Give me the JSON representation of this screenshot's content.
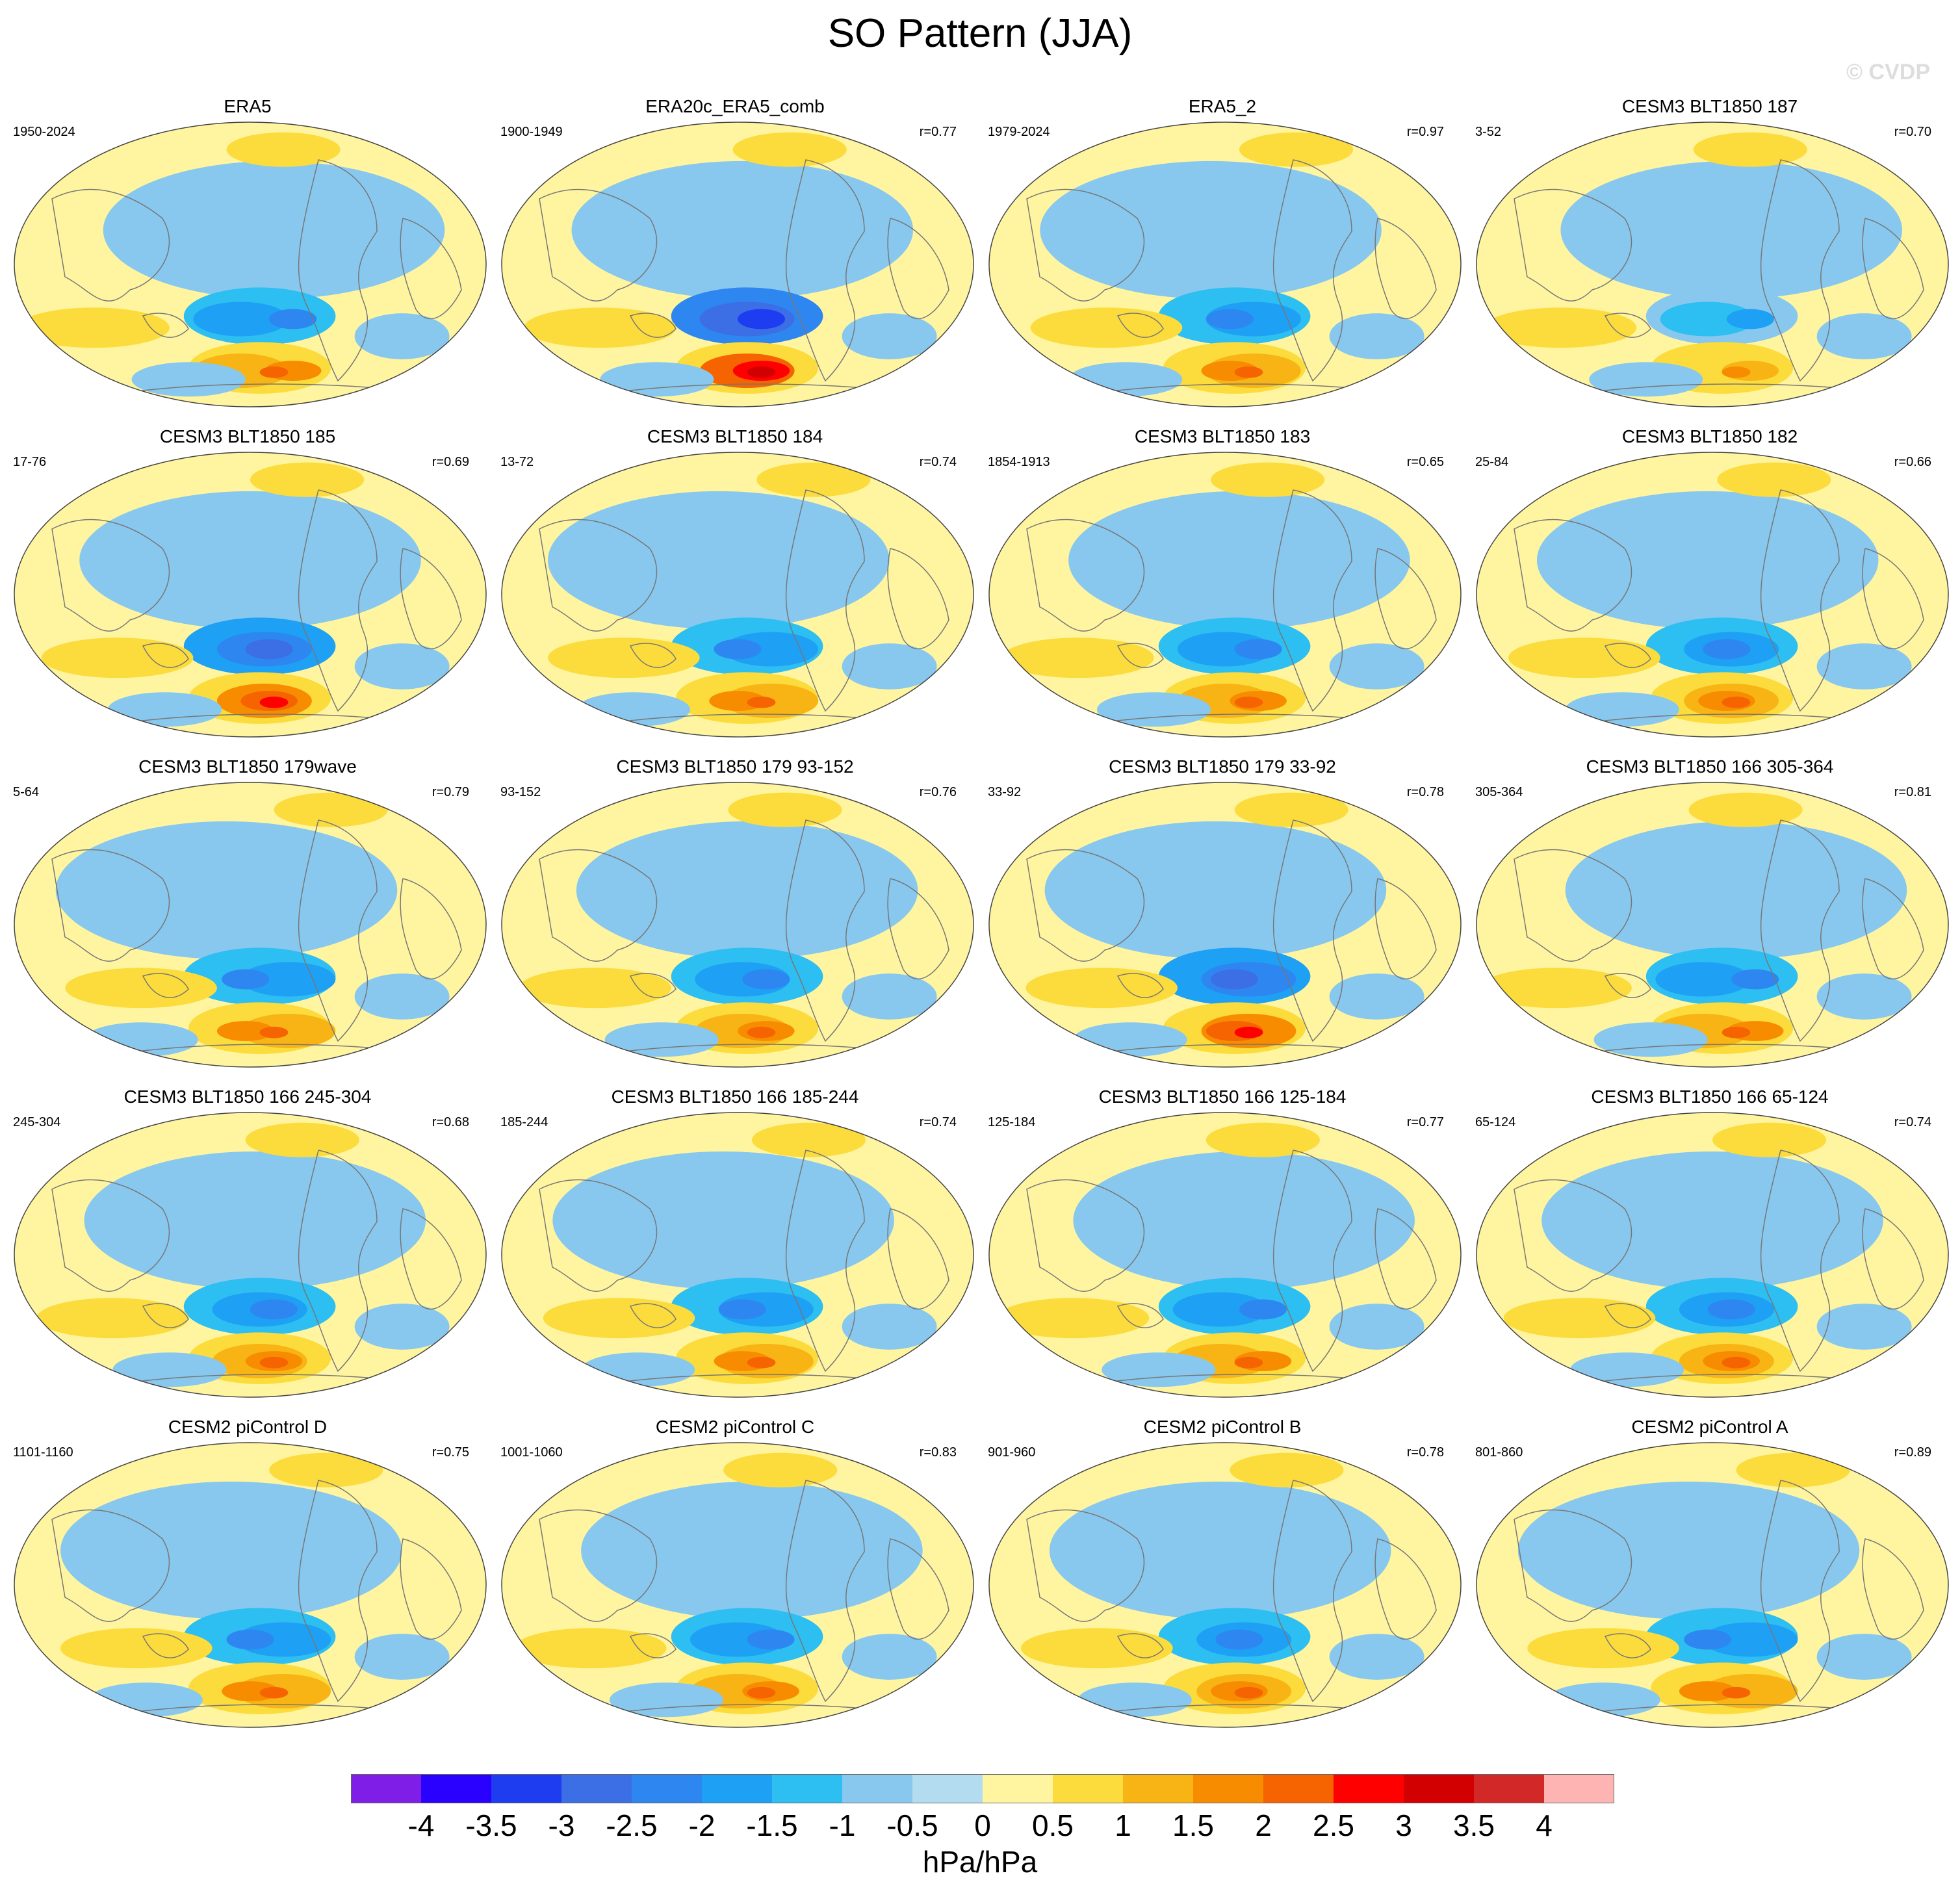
{
  "title": "SO Pattern (JJA)",
  "watermark": "© CVDP",
  "chart_data": {
    "type": "heatmap",
    "projection": "Robinson (Pacific-centered)",
    "units_label": "hPa/hPa",
    "colorbar": {
      "levels": [
        "-4",
        "-3.5",
        "-3",
        "-2.5",
        "-2",
        "-1.5",
        "-1",
        "-0.5",
        "0",
        "0.5",
        "1",
        "1.5",
        "2",
        "2.5",
        "3",
        "3.5",
        "4"
      ],
      "colors": [
        "#7f1ee6",
        "#2a00ff",
        "#1e3cf0",
        "#3c6ee6",
        "#2e86f0",
        "#1ea0f5",
        "#2dbef2",
        "#88c8ee",
        "#b4dcf0",
        "#fff5a0",
        "#fcdc3c",
        "#f8b414",
        "#f88c00",
        "#f56400",
        "#ff0000",
        "#d20000",
        "#d22828",
        "#ffb4b4"
      ]
    },
    "panels": [
      {
        "title": "ERA5",
        "period": "1950-2024",
        "r": "",
        "amp": 0.5
      },
      {
        "title": "ERA20c_ERA5_comb",
        "period": "1900-1949",
        "r": "r=0.77",
        "amp": 0.95
      },
      {
        "title": "ERA5_2",
        "period": "1979-2024",
        "r": "r=0.97",
        "amp": 0.6
      },
      {
        "title": "CESM3 BLT1850 187",
        "period": "3-52",
        "r": "r=0.70",
        "amp": 0.35
      },
      {
        "title": "CESM3 BLT1850 185",
        "period": "17-76",
        "r": "r=0.69",
        "amp": 0.65
      },
      {
        "title": "CESM3 BLT1850 184",
        "period": "13-72",
        "r": "r=0.74",
        "amp": 0.45
      },
      {
        "title": "CESM3 BLT1850 183",
        "period": "1854-1913",
        "r": "r=0.65",
        "amp": 0.55
      },
      {
        "title": "CESM3 BLT1850 182",
        "period": "25-84",
        "r": "r=0.66",
        "amp": 0.5
      },
      {
        "title": "CESM3 BLT1850 179wave",
        "period": "5-64",
        "r": "r=0.79",
        "amp": 0.5
      },
      {
        "title": "CESM3 BLT1850 179 93-152",
        "period": "93-152",
        "r": "r=0.76",
        "amp": 0.55
      },
      {
        "title": "CESM3 BLT1850 179 33-92",
        "period": "33-92",
        "r": "r=0.78",
        "amp": 0.8
      },
      {
        "title": "CESM3 BLT1850 166 305-364",
        "period": "305-364",
        "r": "r=0.81",
        "amp": 0.5
      },
      {
        "title": "CESM3 BLT1850 166 245-304",
        "period": "245-304",
        "r": "r=0.68",
        "amp": 0.45
      },
      {
        "title": "CESM3 BLT1850 166 185-244",
        "period": "185-244",
        "r": "r=0.74",
        "amp": 0.45
      },
      {
        "title": "CESM3 BLT1850 166 125-184",
        "period": "125-184",
        "r": "r=0.77",
        "amp": 0.45
      },
      {
        "title": "CESM3 BLT1850 166 65-124",
        "period": "65-124",
        "r": "r=0.74",
        "amp": 0.45
      },
      {
        "title": "CESM2 piControl D",
        "period": "1101-1160",
        "r": "r=0.75",
        "amp": 0.5
      },
      {
        "title": "CESM2 piControl C",
        "period": "1001-1060",
        "r": "r=0.83",
        "amp": 0.55
      },
      {
        "title": "CESM2 piControl B",
        "period": "901-960",
        "r": "r=0.78",
        "amp": 0.55
      },
      {
        "title": "CESM2 piControl A",
        "period": "801-860",
        "r": "r=0.89",
        "amp": 0.5
      }
    ]
  }
}
